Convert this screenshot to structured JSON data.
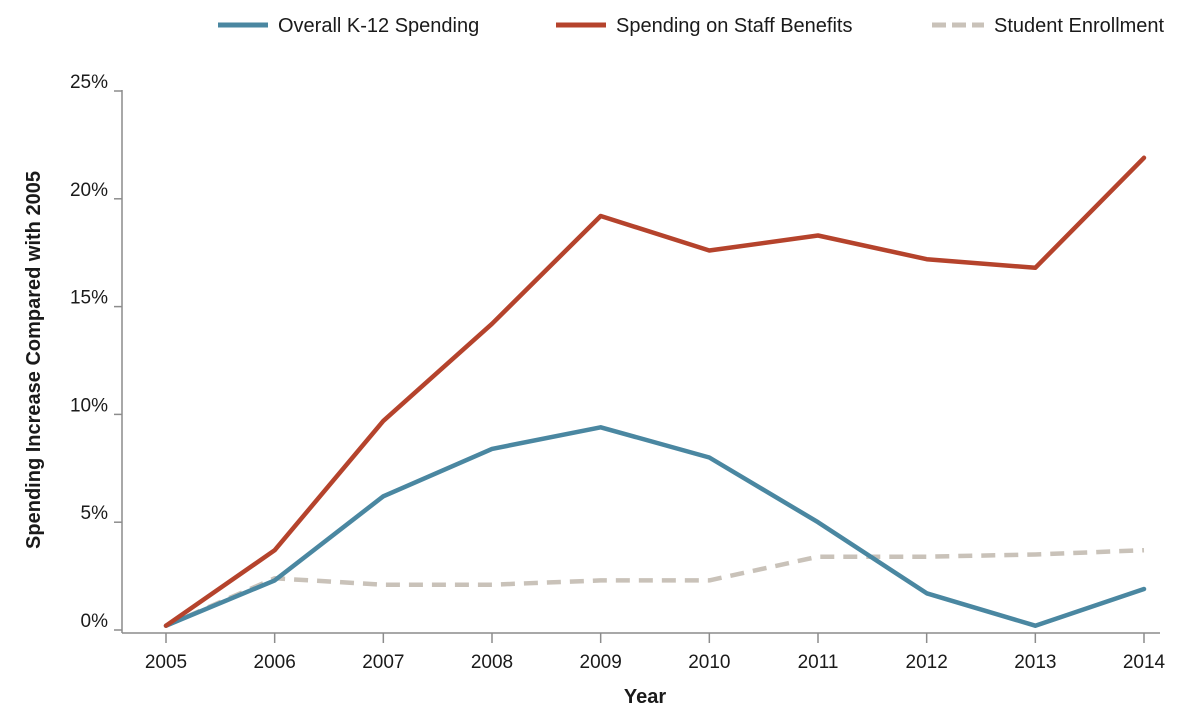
{
  "chart_data": {
    "type": "line",
    "title": "",
    "xlabel": "Year",
    "ylabel": "Spending Increase Compared with 2005",
    "x": [
      "2005",
      "2006",
      "2007",
      "2008",
      "2009",
      "2010",
      "2011",
      "2012",
      "2013",
      "2014"
    ],
    "ylim": [
      0,
      25
    ],
    "yticks": [
      0,
      5,
      10,
      15,
      20,
      25
    ],
    "ytick_labels": [
      "0%",
      "5%",
      "10%",
      "15%",
      "20%",
      "25%"
    ],
    "grid": false,
    "legend_position": "top",
    "series": [
      {
        "name": "Overall K-12 Spending",
        "color": "#4a87a1",
        "style": "solid",
        "values": [
          0.2,
          2.3,
          6.2,
          8.4,
          9.4,
          8.0,
          5.0,
          1.7,
          0.2,
          1.9
        ]
      },
      {
        "name": "Spending on Staff Benefits",
        "color": "#b5432c",
        "style": "solid",
        "values": [
          0.2,
          3.7,
          9.7,
          14.2,
          19.2,
          17.6,
          18.3,
          17.2,
          16.8,
          21.9
        ]
      },
      {
        "name": "Student Enrollment",
        "color": "#c9c2b9",
        "style": "dashed",
        "values": [
          0.2,
          2.4,
          2.1,
          2.1,
          2.3,
          2.3,
          3.4,
          3.4,
          3.5,
          3.7
        ]
      }
    ]
  }
}
